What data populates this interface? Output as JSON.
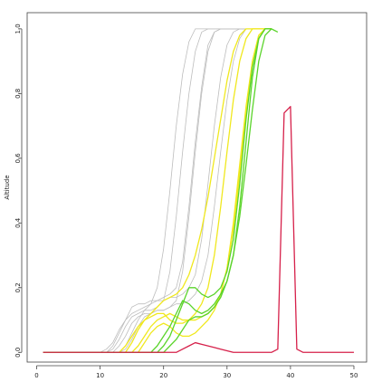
{
  "chart_data": {
    "type": "line",
    "y_label": "Altitude",
    "x": [
      1,
      2,
      3,
      4,
      5,
      6,
      7,
      8,
      9,
      10,
      11,
      12,
      13,
      14,
      15,
      16,
      17,
      18,
      19,
      20,
      21,
      22,
      23,
      24,
      25,
      26,
      27,
      28,
      29,
      30,
      31,
      32,
      33,
      34,
      35,
      36,
      37,
      38,
      39,
      40,
      41,
      42,
      43,
      44,
      45,
      46,
      47,
      48,
      49,
      50
    ],
    "xlim": [
      -1.5,
      52
    ],
    "ylim": [
      -0.03,
      1.05
    ],
    "xticks": [
      0,
      10,
      20,
      30,
      40,
      50
    ],
    "yticks": [
      {
        "value": 0,
        "label": "0.0"
      },
      0.2,
      0.4,
      0.6,
      0.8,
      {
        "value": 1,
        "label": "1.0"
      }
    ],
    "series": [
      {
        "color": "#bdbdbd",
        "values": [
          0,
          0,
          0,
          0,
          0,
          0,
          0,
          0,
          0,
          0,
          0,
          0.01,
          0.04,
          0.08,
          0.11,
          0.12,
          0.13,
          0.13,
          0.14,
          0.16,
          0.25,
          0.42,
          0.62,
          0.8,
          0.93,
          0.99,
          1,
          1,
          1,
          1,
          1,
          1,
          1,
          1,
          1,
          1,
          1,
          null,
          null,
          null,
          null,
          null,
          null,
          null,
          null,
          null,
          null,
          null,
          null,
          null
        ]
      },
      {
        "color": "#bdbdbd",
        "values": [
          0,
          0,
          0,
          0,
          0,
          0,
          0,
          0,
          0,
          0,
          0,
          0,
          0,
          0.01,
          0.04,
          0.08,
          0.11,
          0.12,
          0.13,
          0.13,
          0.14,
          0.16,
          0.25,
          0.42,
          0.62,
          0.8,
          0.93,
          0.99,
          1,
          1,
          1,
          1,
          1,
          1,
          1,
          1,
          1,
          null,
          null,
          null,
          null,
          null,
          null,
          null,
          null,
          null,
          null,
          null,
          null,
          null
        ]
      },
      {
        "color": "#bdbdbd",
        "values": [
          0,
          0,
          0,
          0,
          0,
          0,
          0,
          0,
          0,
          0,
          0,
          0.02,
          0.06,
          0.1,
          0.14,
          0.15,
          0.15,
          0.16,
          0.16,
          0.17,
          0.18,
          0.2,
          0.28,
          0.45,
          0.65,
          0.82,
          0.95,
          0.99,
          1,
          1,
          1,
          1,
          1,
          1,
          1,
          1,
          1,
          null,
          null,
          null,
          null,
          null,
          null,
          null,
          null,
          null,
          null,
          null,
          null,
          null
        ]
      },
      {
        "color": "#bdbdbd",
        "values": [
          0,
          0,
          0,
          0,
          0,
          0,
          0,
          0,
          0,
          0,
          0,
          0,
          0.02,
          0.05,
          0.09,
          0.11,
          0.12,
          0.12,
          0.13,
          0.13,
          0.14,
          0.15,
          0.15,
          0.16,
          0.18,
          0.22,
          0.3,
          0.45,
          0.62,
          0.78,
          0.9,
          0.97,
          1,
          1,
          1,
          1,
          1,
          null,
          null,
          null,
          null,
          null,
          null,
          null,
          null,
          null,
          null,
          null,
          null,
          null
        ]
      },
      {
        "color": "#bdbdbd",
        "values": [
          0,
          0,
          0,
          0,
          0,
          0,
          0,
          0,
          0,
          0,
          0.01,
          0.03,
          0.07,
          0.1,
          0.12,
          0.13,
          0.14,
          0.15,
          0.2,
          0.32,
          0.5,
          0.7,
          0.86,
          0.96,
          1,
          1,
          1,
          1,
          1,
          1,
          1,
          1,
          1,
          1,
          1,
          1,
          1,
          null,
          null,
          null,
          null,
          null,
          null,
          null,
          null,
          null,
          null,
          null,
          null,
          null
        ]
      },
      {
        "color": "#bdbdbd",
        "values": [
          0,
          0,
          0,
          0,
          0,
          0,
          0,
          0,
          0,
          0,
          0,
          0,
          0,
          0.02,
          0.06,
          0.1,
          0.13,
          0.15,
          0.16,
          0.16,
          0.17,
          0.17,
          0.18,
          0.2,
          0.24,
          0.35,
          0.52,
          0.7,
          0.85,
          0.95,
          0.99,
          1,
          1,
          1,
          1,
          1,
          1,
          null,
          null,
          null,
          null,
          null,
          null,
          null,
          null,
          null,
          null,
          null,
          null,
          null
        ]
      },
      {
        "color": "#f0e81e",
        "values": [
          0,
          0,
          0,
          0,
          0,
          0,
          0,
          0,
          0,
          0,
          0,
          0,
          0,
          0,
          0.03,
          0.07,
          0.1,
          0.11,
          0.12,
          0.12,
          0.1,
          0.09,
          0.09,
          0.1,
          0.12,
          0.15,
          0.2,
          0.3,
          0.45,
          0.62,
          0.78,
          0.9,
          0.97,
          1,
          1,
          1,
          1,
          null,
          null,
          null,
          null,
          null,
          null,
          null,
          null,
          null,
          null,
          null,
          null,
          null
        ]
      },
      {
        "color": "#f0e81e",
        "values": [
          0,
          0,
          0,
          0,
          0,
          0,
          0,
          0,
          0,
          0,
          0,
          0,
          0,
          0,
          0,
          0.02,
          0.05,
          0.08,
          0.1,
          0.11,
          0.12,
          0.11,
          0.1,
          0.1,
          0.1,
          0.11,
          0.12,
          0.14,
          0.18,
          0.26,
          0.4,
          0.58,
          0.76,
          0.9,
          0.98,
          1,
          1,
          null,
          null,
          null,
          null,
          null,
          null,
          null,
          null,
          null,
          null,
          null,
          null,
          null
        ]
      },
      {
        "color": "#f0e81e",
        "values": [
          0,
          0,
          0,
          0,
          0,
          0,
          0,
          0,
          0,
          0,
          0,
          0,
          0,
          0.02,
          0.05,
          0.08,
          0.1,
          0.12,
          0.14,
          0.16,
          0.17,
          0.18,
          0.2,
          0.24,
          0.3,
          0.38,
          0.48,
          0.6,
          0.72,
          0.84,
          0.93,
          0.98,
          1,
          1,
          1,
          1,
          1,
          null,
          null,
          null,
          null,
          null,
          null,
          null,
          null,
          null,
          null,
          null,
          null,
          null
        ]
      },
      {
        "color": "#f0e81e",
        "values": [
          0,
          0,
          0,
          0,
          0,
          0,
          0,
          0,
          0,
          0,
          0,
          0,
          0,
          0,
          0,
          0,
          0.03,
          0.06,
          0.08,
          0.09,
          0.08,
          0.06,
          0.05,
          0.05,
          0.06,
          0.08,
          0.1,
          0.13,
          0.18,
          0.26,
          0.38,
          0.55,
          0.74,
          0.9,
          0.98,
          1,
          1,
          null,
          null,
          null,
          null,
          null,
          null,
          null,
          null,
          null,
          null,
          null,
          null,
          null
        ]
      },
      {
        "color": "#5ad42a",
        "values": [
          0,
          0,
          0,
          0,
          0,
          0,
          0,
          0,
          0,
          0,
          0,
          0,
          0,
          0,
          0,
          0,
          0,
          0,
          0.02,
          0.05,
          0.08,
          0.12,
          0.16,
          0.15,
          0.13,
          0.12,
          0.13,
          0.15,
          0.18,
          0.22,
          0.3,
          0.45,
          0.65,
          0.85,
          0.97,
          1,
          1,
          null,
          null,
          null,
          null,
          null,
          null,
          null,
          null,
          null,
          null,
          null,
          null,
          null
        ]
      },
      {
        "color": "#5ad42a",
        "values": [
          0,
          0,
          0,
          0,
          0,
          0,
          0,
          0,
          0,
          0,
          0,
          0,
          0,
          0,
          0,
          0,
          0,
          0,
          0,
          0.02,
          0.05,
          0.1,
          0.15,
          0.2,
          0.2,
          0.18,
          0.17,
          0.18,
          0.2,
          0.25,
          0.35,
          0.52,
          0.72,
          0.88,
          0.97,
          1,
          1,
          null,
          null,
          null,
          null,
          null,
          null,
          null,
          null,
          null,
          null,
          null,
          null,
          null
        ]
      },
      {
        "color": "#5ad42a",
        "values": [
          0,
          0,
          0,
          0,
          0,
          0,
          0,
          0,
          0,
          0,
          0,
          0,
          0,
          0,
          0,
          0,
          0,
          0,
          0,
          0,
          0.02,
          0.04,
          0.07,
          0.1,
          0.11,
          0.11,
          0.12,
          0.14,
          0.17,
          0.22,
          0.3,
          0.42,
          0.58,
          0.75,
          0.9,
          0.98,
          1,
          0.99,
          null,
          null,
          null,
          null,
          null,
          null,
          null,
          null,
          null,
          null,
          null,
          null
        ]
      },
      {
        "color": "#d6204a",
        "values": [
          0,
          0,
          0,
          0,
          0,
          0,
          0,
          0,
          0,
          0,
          0,
          0,
          0,
          0,
          0,
          0,
          0,
          0,
          0,
          0,
          0,
          0,
          0.01,
          0.02,
          0.03,
          0.025,
          0.02,
          0.015,
          0.01,
          0.005,
          0,
          0,
          0,
          0,
          0,
          0,
          0,
          0.01,
          0.74,
          0.76,
          0.01,
          0,
          0,
          0,
          0,
          0,
          0,
          0,
          0,
          0
        ]
      }
    ]
  }
}
